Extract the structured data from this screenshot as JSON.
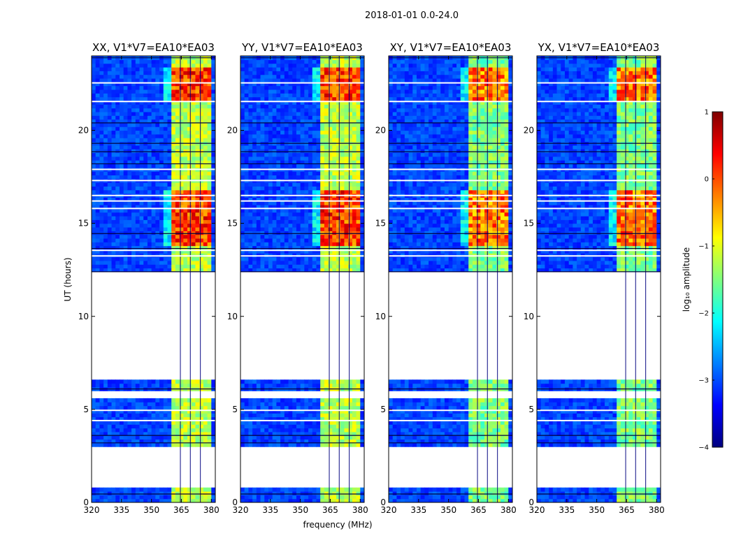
{
  "chart_data": {
    "type": "heatmap",
    "suptitle": "2018-01-01 0.0-24.0",
    "xlabel": "frequency (MHz)",
    "ylabel": "UT (hours)",
    "xlim": [
      320,
      382
    ],
    "ylim": [
      0,
      24
    ],
    "xticks": [
      320,
      335,
      350,
      365,
      380
    ],
    "yticks": [
      0,
      5,
      10,
      15,
      20
    ],
    "panels": [
      {
        "title": "XX, V1*V7=EA10*EA03"
      },
      {
        "title": "YY, V1*V7=EA10*EA03"
      },
      {
        "title": "XY, V1*V7=EA10*EA03"
      },
      {
        "title": "YX, V1*V7=EA10*EA03"
      }
    ],
    "data_gaps_hours": [
      [
        0.85,
        3.05
      ],
      [
        5.6,
        5.95
      ],
      [
        6.55,
        12.35
      ]
    ],
    "bright_band_mhz": [
      360,
      379
    ],
    "strong_emission_hours": [
      [
        13.8,
        16.7
      ],
      [
        21.7,
        23.4
      ]
    ],
    "colorbar": {
      "label": "log₁₀ amplitude",
      "range": [
        -4,
        1
      ],
      "ticks": [
        1,
        0,
        -1,
        -2,
        -3,
        -4
      ],
      "colormap": [
        "#00007f",
        "#0000ff",
        "#007fff",
        "#00ffff",
        "#7fff7f",
        "#ffff00",
        "#ff7f00",
        "#ff0000",
        "#7f0000"
      ]
    }
  }
}
